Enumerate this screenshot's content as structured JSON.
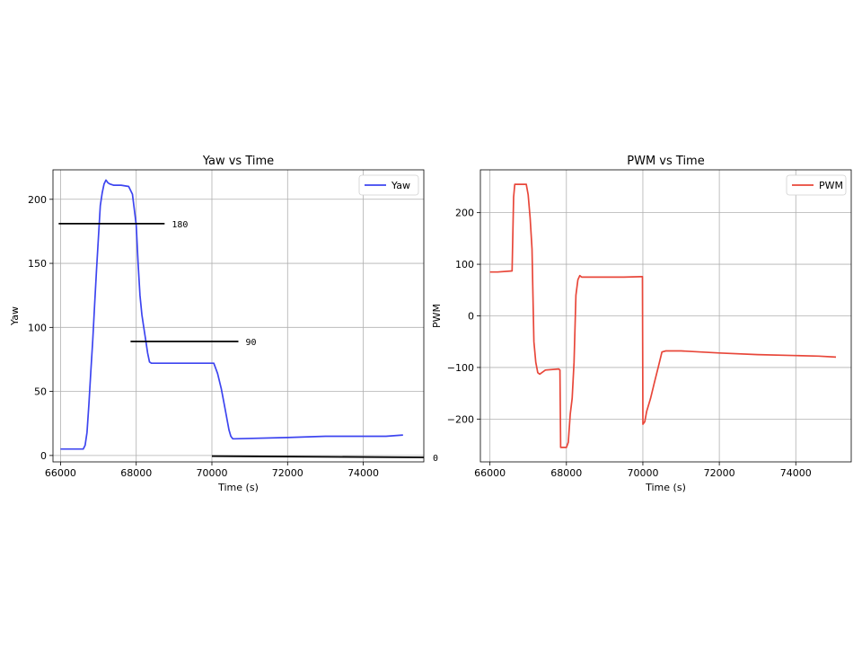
{
  "charts": [
    {
      "type": "line",
      "title": "Yaw vs Time",
      "xlabel": "Time (s)",
      "ylabel": "Yaw",
      "xlim": [
        65800,
        75600
      ],
      "ylim": [
        -5,
        223
      ],
      "xticks": [
        66000,
        68000,
        70000,
        72000,
        74000
      ],
      "yticks": [
        0,
        50,
        100,
        150,
        200
      ],
      "grid": true,
      "legend": "top-right",
      "series": [
        {
          "name": "Yaw",
          "color": "#3d45f0",
          "x": [
            66000,
            66600,
            66650,
            66700,
            66750,
            66800,
            66850,
            66900,
            66950,
            67000,
            67050,
            67100,
            67150,
            67200,
            67250,
            67300,
            67400,
            67600,
            67800,
            67900,
            67950,
            68000,
            68050,
            68100,
            68150,
            68200,
            68250,
            68300,
            68350,
            68400,
            68600,
            69000,
            69500,
            69800,
            70050,
            70150,
            70250,
            70350,
            70450,
            70500,
            70550,
            70600,
            72000,
            73000,
            74000,
            74600,
            75050
          ],
          "y": [
            5,
            5,
            8,
            18,
            40,
            65,
            90,
            118,
            145,
            170,
            195,
            205,
            212,
            215,
            213,
            212,
            211,
            211,
            210,
            204,
            192,
            180,
            150,
            125,
            110,
            100,
            90,
            80,
            73,
            72,
            72,
            72,
            72,
            72,
            72,
            64,
            52,
            36,
            20,
            15,
            13,
            13,
            14,
            15,
            15,
            15,
            16
          ]
        }
      ],
      "reference_lines": [
        {
          "label": "180",
          "y": 181,
          "x_start": 65950,
          "x_end": 68750
        },
        {
          "label": "90",
          "y": 89,
          "x_start": 67850,
          "x_end": 70700
        },
        {
          "label": "0",
          "y": -0.5,
          "y_end": -1.5,
          "x_start": 70000,
          "x_end": 75600
        }
      ]
    },
    {
      "type": "line",
      "title": "PWM vs Time",
      "xlabel": "Time (s)",
      "ylabel": "PWM",
      "xlim": [
        65750,
        75450
      ],
      "ylim": [
        -283,
        283
      ],
      "xticks": [
        66000,
        68000,
        70000,
        72000,
        74000
      ],
      "yticks": [
        -200,
        -100,
        0,
        100,
        200
      ],
      "grid": true,
      "legend": "top-right",
      "series": [
        {
          "name": "PWM",
          "color": "#e8473a",
          "x": [
            66000,
            66200,
            66580,
            66620,
            66650,
            66700,
            66950,
            67000,
            67050,
            67100,
            67120,
            67150,
            67200,
            67250,
            67300,
            67450,
            67800,
            67830,
            67850,
            68000,
            68050,
            68100,
            68150,
            68200,
            68250,
            68300,
            68350,
            68400,
            68600,
            69000,
            69500,
            69950,
            69990,
            70000,
            70050,
            70100,
            70200,
            70300,
            70400,
            70500,
            70600,
            71000,
            72000,
            73000,
            74000,
            74600,
            75050
          ],
          "y": [
            85,
            85,
            87,
            230,
            255,
            255,
            255,
            235,
            190,
            130,
            60,
            -50,
            -90,
            -110,
            -113,
            -105,
            -103,
            -105,
            -255,
            -255,
            -245,
            -190,
            -160,
            -90,
            40,
            70,
            78,
            75,
            75,
            75,
            75,
            76,
            76,
            -210,
            -205,
            -185,
            -160,
            -130,
            -100,
            -70,
            -68,
            -68,
            -72,
            -75,
            -77,
            -78,
            -80
          ]
        }
      ]
    }
  ]
}
